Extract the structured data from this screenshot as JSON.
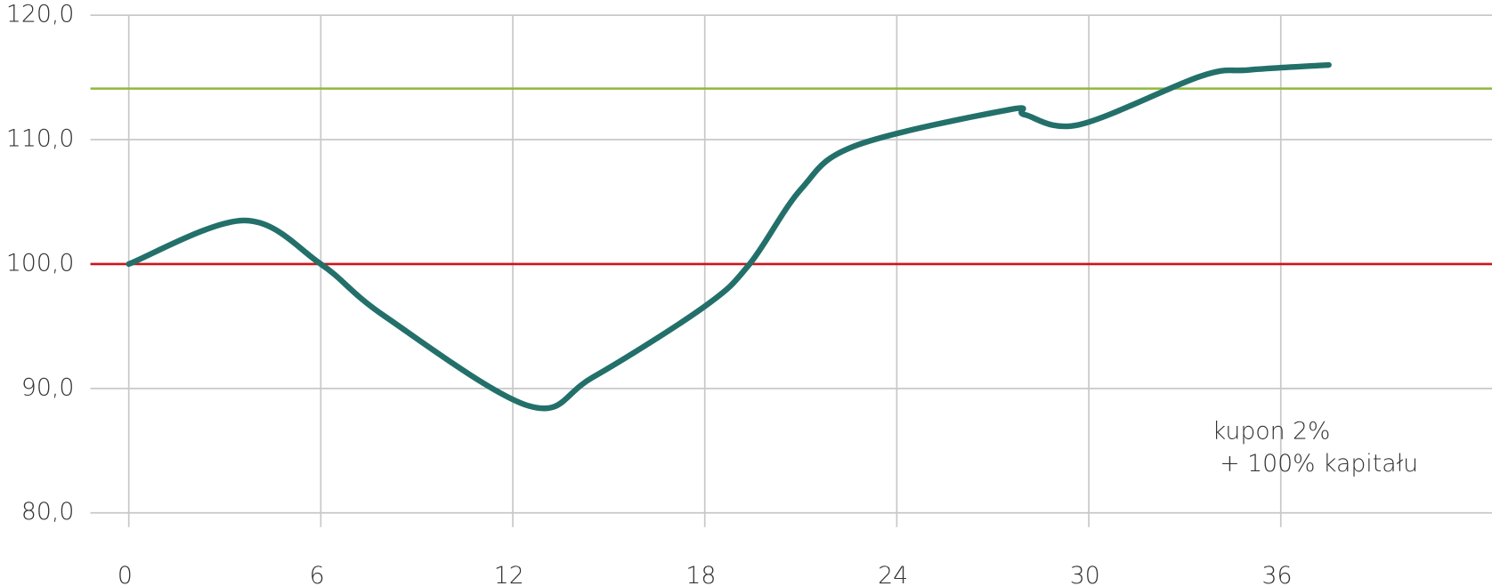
{
  "chart_data": {
    "type": "line",
    "x": [
      0,
      3.6,
      6,
      8,
      12.5,
      14.5,
      18,
      19.4,
      21,
      22.7,
      27.5,
      28,
      29.7,
      33.5,
      35,
      37.5
    ],
    "series": [
      {
        "color": "#23706a",
        "values": [
          100,
          103.5,
          100,
          95.8,
          88.6,
          90.9,
          96.6,
          100,
          106,
          109.5,
          112.4,
          112,
          111.2,
          115.1,
          115.6,
          116
        ]
      }
    ],
    "xlim": [
      -1.2,
      42.6
    ],
    "ylim": [
      80,
      120
    ],
    "xticks": [
      0,
      6,
      12,
      18,
      24,
      30,
      36
    ],
    "yticks": [
      {
        "value": 80,
        "label": "80,0"
      },
      {
        "value": 90,
        "label": "90,0"
      },
      {
        "value": 100,
        "label": "100,0"
      },
      {
        "value": 110,
        "label": "110,0"
      },
      {
        "value": 120,
        "label": "120,0"
      }
    ],
    "grid": true,
    "reference_lines": [
      {
        "value": 100,
        "color": "#d0141a"
      },
      {
        "value": 114.1,
        "color": "#8fb83c"
      }
    ],
    "annotation": [
      "kupon 2%",
      " + 100% kapitału"
    ]
  }
}
